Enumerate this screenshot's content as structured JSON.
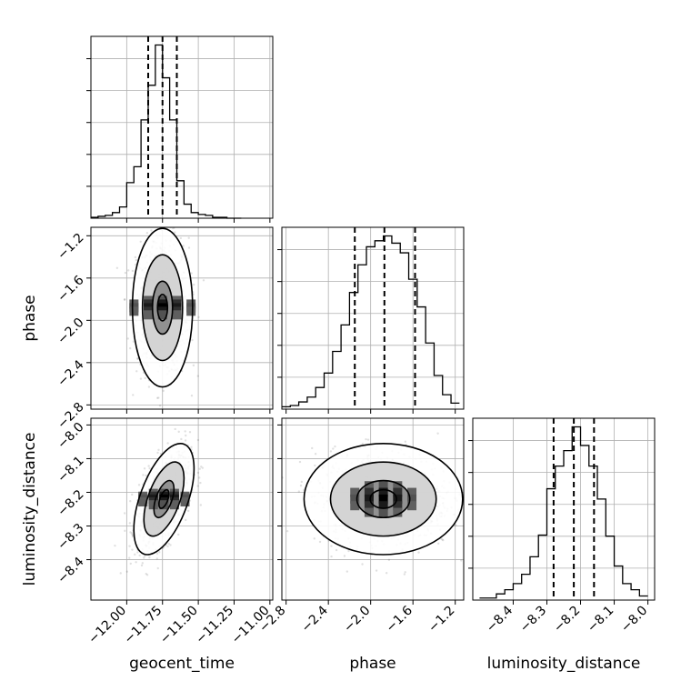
{
  "chart_data": {
    "type": "corner",
    "parameters": [
      "geocent_time",
      "phase",
      "luminosity_distance"
    ],
    "axis_labels": {
      "geocent_time": "geocent_time",
      "phase": "phase",
      "luminosity_distance": "luminosity_distance"
    },
    "ranges": {
      "geocent_time": [
        -12.25,
        -10.98
      ],
      "phase": [
        -2.84,
        -1.12
      ],
      "luminosity_distance": [
        -8.52,
        -7.98
      ]
    },
    "ticks": {
      "geocent_time": [
        -12.0,
        -11.75,
        -11.5,
        -11.25,
        -11.0
      ],
      "geocent_time_labels": [
        "−12.00",
        "−11.75",
        "−11.50",
        "−11.25",
        "−11.00"
      ],
      "phase": [
        -2.8,
        -2.4,
        -2.0,
        -1.6,
        -1.2
      ],
      "phase_labels": [
        "−2.8",
        "−2.4",
        "−2.0",
        "−1.6",
        "−1.2"
      ],
      "luminosity_distance": [
        -8.4,
        -8.3,
        -8.2,
        -8.1,
        -8.0
      ],
      "luminosity_distance_labels": [
        "−8.4",
        "−8.3",
        "−8.2",
        "−8.1",
        "−8.0"
      ]
    },
    "quantiles": {
      "geocent_time": [
        -11.85,
        -11.75,
        -11.65
      ],
      "phase": [
        -2.15,
        -1.87,
        -1.58
      ],
      "luminosity_distance": [
        -8.28,
        -8.22,
        -8.16
      ]
    },
    "histograms": {
      "geocent_time": {
        "edges": [
          -12.25,
          -12.2,
          -12.15,
          -12.1,
          -12.05,
          -12.0,
          -11.95,
          -11.9,
          -11.85,
          -11.8,
          -11.75,
          -11.7,
          -11.65,
          -11.6,
          -11.55,
          -11.5,
          -11.45,
          -11.4,
          -11.35,
          -11.3,
          -11.25,
          -11.2
        ],
        "counts": [
          1,
          2,
          3,
          6,
          12,
          38,
          55,
          105,
          142,
          185,
          150,
          105,
          40,
          15,
          6,
          4,
          3,
          1,
          1,
          0,
          0
        ]
      },
      "phase": {
        "edges": [
          -2.84,
          -2.76,
          -2.68,
          -2.6,
          -2.52,
          -2.44,
          -2.36,
          -2.28,
          -2.2,
          -2.12,
          -2.04,
          -1.96,
          -1.88,
          -1.8,
          -1.72,
          -1.64,
          -1.56,
          -1.48,
          -1.4,
          -1.32,
          -1.24,
          -1.16
        ],
        "counts": [
          2,
          3,
          6,
          10,
          18,
          30,
          48,
          70,
          97,
          120,
          135,
          140,
          144,
          138,
          130,
          108,
          85,
          55,
          28,
          12,
          5
        ]
      },
      "luminosity_distance": {
        "edges": [
          -8.5,
          -8.475,
          -8.45,
          -8.425,
          -8.4,
          -8.375,
          -8.35,
          -8.325,
          -8.3,
          -8.275,
          -8.25,
          -8.225,
          -8.2,
          -8.175,
          -8.15,
          -8.125,
          -8.1,
          -8.075,
          -8.05,
          -8.025,
          -8.0
        ],
        "counts": [
          2,
          2,
          6,
          10,
          16,
          25,
          42,
          63,
          108,
          130,
          145,
          168,
          150,
          130,
          98,
          62,
          33,
          16,
          10,
          4
        ]
      }
    },
    "joint_estimates": {
      "phase_vs_geocent_time": {
        "mean": [
          -11.75,
          -1.88
        ],
        "sd": [
          0.07,
          0.25
        ],
        "rho": 0.0
      },
      "luminosity_distance_vs_geocent_time": {
        "mean": [
          -11.74,
          -8.22
        ],
        "sd": [
          0.07,
          0.055
        ],
        "rho": 0.55
      },
      "luminosity_distance_vs_phase": {
        "mean": [
          -1.88,
          -8.22
        ],
        "sd": [
          0.25,
          0.055
        ],
        "rho": 0.0
      }
    },
    "grid": true,
    "contour_levels": [
      "39.3%",
      "86.5%",
      "98.9%"
    ]
  }
}
